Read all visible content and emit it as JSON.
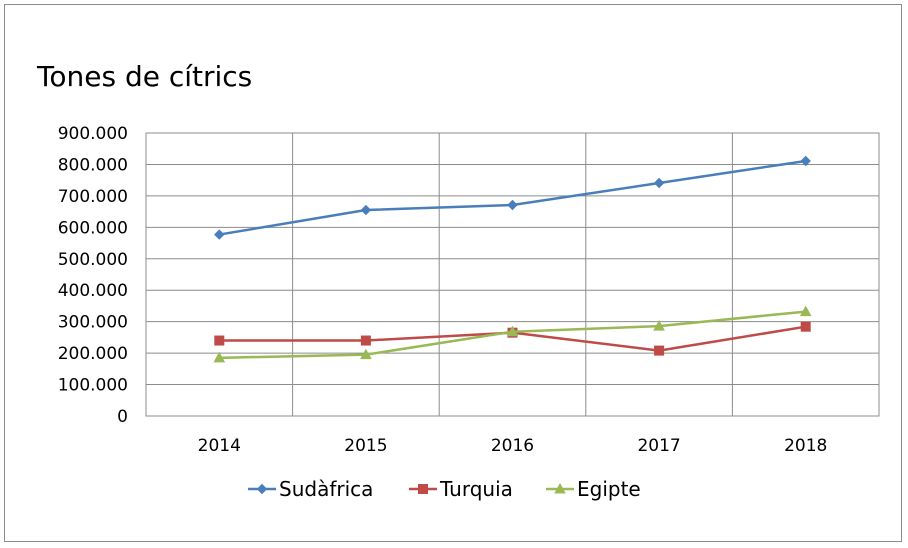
{
  "chart_data": {
    "type": "line",
    "title": "Tones de cítrics",
    "xlabel": "",
    "ylabel": "",
    "categories": [
      "2014",
      "2015",
      "2016",
      "2017",
      "2018"
    ],
    "ylim": [
      0,
      900000
    ],
    "yticks": [
      0,
      100000,
      200000,
      300000,
      400000,
      500000,
      600000,
      700000,
      800000,
      900000
    ],
    "ytick_labels": [
      "0",
      "100.000",
      "200.000",
      "300.000",
      "400.000",
      "500.000",
      "600.000",
      "700.000",
      "800.000",
      "900.000"
    ],
    "grid": true,
    "legend_position": "bottom",
    "series": [
      {
        "name": "Sudàfrica",
        "color": "#4a7ebb",
        "marker": "diamond",
        "values": [
          577000,
          655000,
          671000,
          741000,
          811000
        ]
      },
      {
        "name": "Turquia",
        "color": "#be4b48",
        "marker": "square",
        "values": [
          240000,
          240000,
          265000,
          208000,
          284000
        ]
      },
      {
        "name": "Egipte",
        "color": "#98b954",
        "marker": "triangle",
        "values": [
          185000,
          195000,
          268000,
          286000,
          332000
        ]
      }
    ]
  }
}
